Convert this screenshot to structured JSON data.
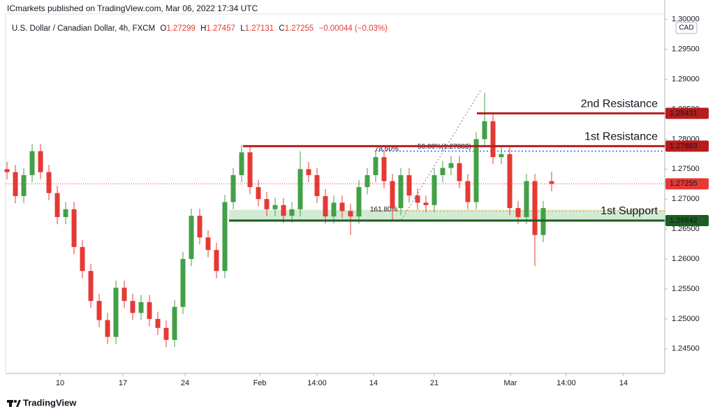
{
  "header": {
    "publisher": "ICmarkets published on TradingView.com, Mar 06, 2022 17:34 UTC"
  },
  "footer": {
    "brand": "TradingView"
  },
  "chart_data": {
    "type": "candlestick",
    "symbol": "U.S. Dollar / Canadian Dollar, 4h, FXCM",
    "ohlc_labels": [
      "O",
      "H",
      "L",
      "C"
    ],
    "change": "−0.00044 (−0.03%)",
    "currency": "CAD",
    "up_color": "#43a047",
    "down_color": "#e53935",
    "open": [
      1.275,
      1.2745,
      1.2705,
      1.274,
      1.278,
      1.2745,
      1.271,
      1.267,
      1.2683,
      1.262,
      1.258,
      1.253,
      1.2498,
      1.247,
      1.2552,
      1.253,
      1.251,
      1.2528,
      1.25,
      1.2485,
      1.2465,
      1.252,
      1.26,
      1.2672,
      1.2636,
      1.2615,
      1.258,
      1.2695,
      1.274,
      1.2778,
      1.272,
      1.27,
      1.2683,
      1.269,
      1.2672,
      1.2683,
      1.275,
      1.274,
      1.2705,
      1.2671,
      1.2694,
      1.268,
      1.2671,
      1.272,
      1.274,
      1.277,
      1.273,
      1.2685,
      1.274,
      1.2706,
      1.2694,
      1.269,
      1.274,
      1.2752,
      1.276,
      1.273,
      1.2695,
      1.28,
      1.283,
      1.277,
      1.2775,
      1.2685,
      1.267,
      1.273,
      1.264,
      1.27299
    ],
    "high": [
      1.2762,
      1.2757,
      1.2752,
      1.2792,
      1.2792,
      1.2757,
      1.2722,
      1.2695,
      1.2695,
      1.2632,
      1.2592,
      1.2542,
      1.251,
      1.2564,
      1.2564,
      1.2542,
      1.254,
      1.254,
      1.2512,
      1.2497,
      1.2532,
      1.2612,
      1.2684,
      1.2684,
      1.2648,
      1.2627,
      1.2707,
      1.2752,
      1.279,
      1.279,
      1.2732,
      1.2712,
      1.2702,
      1.2702,
      1.2695,
      1.278,
      1.2762,
      1.2752,
      1.2717,
      1.2706,
      1.2706,
      1.2692,
      1.2732,
      1.2752,
      1.2782,
      1.2782,
      1.2742,
      1.2752,
      1.2752,
      1.2718,
      1.2706,
      1.2752,
      1.2764,
      1.2772,
      1.2772,
      1.2742,
      1.2812,
      1.2877,
      1.2842,
      1.2787,
      1.2787,
      1.2697,
      1.2742,
      1.2742,
      1.2697,
      1.27457
    ],
    "low": [
      1.2733,
      1.2693,
      1.2693,
      1.2728,
      1.2733,
      1.2698,
      1.2658,
      1.2658,
      1.2608,
      1.2568,
      1.2518,
      1.2486,
      1.2458,
      1.2458,
      1.2518,
      1.2498,
      1.2498,
      1.2488,
      1.2473,
      1.2453,
      1.2453,
      1.2508,
      1.2588,
      1.2624,
      1.2603,
      1.2568,
      1.2568,
      1.2683,
      1.2728,
      1.2708,
      1.2688,
      1.2671,
      1.2671,
      1.266,
      1.266,
      1.2671,
      1.2728,
      1.2693,
      1.2659,
      1.2659,
      1.2668,
      1.264,
      1.2659,
      1.2708,
      1.2728,
      1.2718,
      1.2665,
      1.2673,
      1.2694,
      1.2682,
      1.2678,
      1.2678,
      1.2728,
      1.274,
      1.2718,
      1.2683,
      1.2683,
      1.2788,
      1.2758,
      1.2758,
      1.2673,
      1.2658,
      1.2658,
      1.2588,
      1.2628,
      1.27131
    ],
    "close": [
      1.2745,
      1.2705,
      1.274,
      1.278,
      1.2745,
      1.271,
      1.267,
      1.2683,
      1.262,
      1.258,
      1.253,
      1.2498,
      1.247,
      1.2552,
      1.253,
      1.251,
      1.2528,
      1.25,
      1.2485,
      1.2465,
      1.252,
      1.26,
      1.2672,
      1.2636,
      1.2615,
      1.258,
      1.2695,
      1.274,
      1.2778,
      1.272,
      1.27,
      1.2683,
      1.269,
      1.2672,
      1.2683,
      1.275,
      1.274,
      1.2705,
      1.2671,
      1.2694,
      1.268,
      1.2671,
      1.272,
      1.274,
      1.277,
      1.273,
      1.2685,
      1.274,
      1.2706,
      1.2694,
      1.269,
      1.274,
      1.2752,
      1.276,
      1.273,
      1.2695,
      1.28,
      1.283,
      1.277,
      1.2775,
      1.2685,
      1.267,
      1.273,
      1.264,
      1.2685,
      1.27255
    ],
    "xlim": [
      -0.17,
      78.5
    ],
    "xticks": [
      {
        "value": 6.33,
        "label": "10"
      },
      {
        "value": 13.83,
        "label": "17"
      },
      {
        "value": 21.25,
        "label": "24"
      },
      {
        "value": 30.17,
        "label": "Feb"
      },
      {
        "value": 37,
        "label": "14:00"
      },
      {
        "value": 43.75,
        "label": "14"
      },
      {
        "value": 51,
        "label": "21"
      },
      {
        "value": 60.08,
        "label": "Mar"
      },
      {
        "value": 66.75,
        "label": "14:00"
      },
      {
        "value": 73.58,
        "label": "14"
      }
    ],
    "ylim": [
      1.2409,
      1.3009
    ],
    "yticks": [
      {
        "value": 1.245,
        "label": "1.24500"
      },
      {
        "value": 1.25,
        "label": "1.25000"
      },
      {
        "value": 1.255,
        "label": "1.25500"
      },
      {
        "value": 1.26,
        "label": "1.26000"
      },
      {
        "value": 1.265,
        "label": "1.26500"
      },
      {
        "value": 1.27,
        "label": "1.27000"
      },
      {
        "value": 1.275,
        "label": "1.27500"
      },
      {
        "value": 1.28,
        "label": "1.28000"
      },
      {
        "value": 1.285,
        "label": "1.28500"
      },
      {
        "value": 1.29,
        "label": "1.29000"
      },
      {
        "value": 1.295,
        "label": "1.29500"
      },
      {
        "value": 1.3,
        "label": "1.30000"
      }
    ],
    "grid": false,
    "levels": [
      {
        "name": "2nd Resistance",
        "value": 1.28431,
        "color": "#b71c1c"
      },
      {
        "name": "1st Resistance",
        "value": 1.27883,
        "color": "#b71c1c"
      },
      {
        "name": "1st Support",
        "value": 1.26642,
        "color": "#1b5e20"
      }
    ],
    "support_zone": [
      1.26642,
      1.2682
    ],
    "zone_color": "#c8e6c9",
    "fib": [
      {
        "label": "78.60%",
        "value": 1.278,
        "color": "#2962ff"
      },
      {
        "label": "161.80%",
        "value": 1.268,
        "color": "#f9a825"
      }
    ],
    "fib_note": "50.00%(1.27883)"
  }
}
